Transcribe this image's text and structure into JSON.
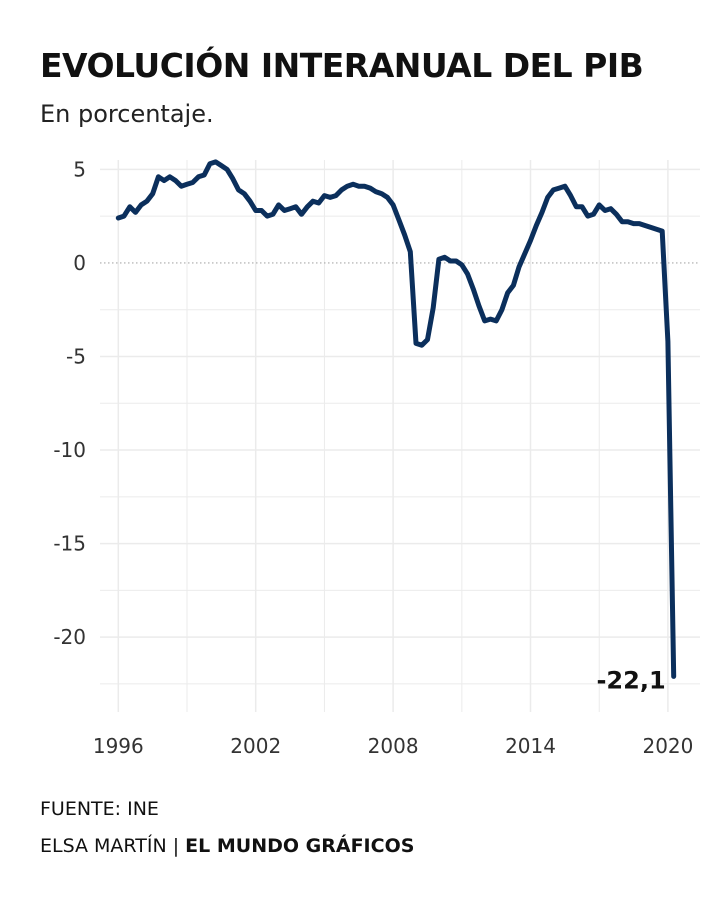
{
  "header": {
    "title": "EVOLUCIÓN INTERANUAL DEL PIB",
    "subtitle": "En porcentaje."
  },
  "footer": {
    "source": "FUENTE: INE",
    "author": "ELSA MARTÍN",
    "separator": " | ",
    "brand": "EL MUNDO GRÁFICOS"
  },
  "colors": {
    "line": "#0b2f5c",
    "grid": "#ebebeb",
    "zero_line": "#aaaaaa"
  },
  "chart_data": {
    "type": "line",
    "title": "EVOLUCIÓN INTERANUAL DEL PIB",
    "subtitle": "En porcentaje.",
    "xlabel": "",
    "ylabel": "",
    "xlim": [
      1995.2,
      2021.4
    ],
    "ylim": [
      -24,
      5.5
    ],
    "x_ticks": [
      1996,
      2002,
      2008,
      2014,
      2020
    ],
    "x_tick_labels": [
      "1996",
      "2002",
      "2008",
      "2014",
      "2020"
    ],
    "y_ticks": [
      5,
      0,
      -5,
      -10,
      -15,
      -20
    ],
    "y_tick_labels": [
      "5",
      "0",
      "-5",
      "-10",
      "-15",
      "-20"
    ],
    "grid": true,
    "zero_reference_line": "dotted",
    "annotation": {
      "text": "-22,1",
      "x": 2020.25,
      "y": -22.1
    },
    "series": [
      {
        "x": [
          1996.0,
          1996.25,
          1996.5,
          1996.75,
          1997.0,
          1997.25,
          1997.5,
          1997.75,
          1998.0,
          1998.25,
          1998.5,
          1998.75,
          1999.0,
          1999.25,
          1999.5,
          1999.75,
          2000.0,
          2000.25,
          2000.5,
          2000.75,
          2001.0,
          2001.25,
          2001.5,
          2001.75,
          2002.0,
          2002.25,
          2002.5,
          2002.75,
          2003.0,
          2003.25,
          2003.5,
          2003.75,
          2004.0,
          2004.25,
          2004.5,
          2004.75,
          2005.0,
          2005.25,
          2005.5,
          2005.75,
          2006.0,
          2006.25,
          2006.5,
          2006.75,
          2007.0,
          2007.25,
          2007.5,
          2007.75,
          2008.0,
          2008.25,
          2008.5,
          2008.75,
          2009.0,
          2009.25,
          2009.5,
          2009.75,
          2010.0,
          2010.25,
          2010.5,
          2010.75,
          2011.0,
          2011.25,
          2011.5,
          2011.75,
          2012.0,
          2012.25,
          2012.5,
          2012.75,
          2013.0,
          2013.25,
          2013.5,
          2013.75,
          2014.0,
          2014.25,
          2014.5,
          2014.75,
          2015.0,
          2015.25,
          2015.5,
          2015.75,
          2016.0,
          2016.25,
          2016.5,
          2016.75,
          2017.0,
          2017.25,
          2017.5,
          2017.75,
          2018.0,
          2018.25,
          2018.5,
          2018.75,
          2019.0,
          2019.25,
          2019.5,
          2019.75,
          2020.0,
          2020.25
        ],
        "values": [
          2.4,
          2.5,
          3.0,
          2.7,
          3.1,
          3.3,
          3.7,
          4.6,
          4.4,
          4.6,
          4.4,
          4.1,
          4.2,
          4.3,
          4.6,
          4.7,
          5.3,
          5.4,
          5.2,
          5.0,
          4.5,
          3.9,
          3.7,
          3.3,
          2.8,
          2.8,
          2.5,
          2.6,
          3.1,
          2.8,
          2.9,
          3.0,
          2.6,
          3.0,
          3.3,
          3.2,
          3.6,
          3.5,
          3.6,
          3.9,
          4.1,
          4.2,
          4.1,
          4.1,
          4.0,
          3.8,
          3.7,
          3.5,
          3.1,
          2.3,
          1.5,
          0.6,
          -4.3,
          -4.4,
          -4.1,
          -2.4,
          0.2,
          0.3,
          0.1,
          0.1,
          -0.1,
          -0.6,
          -1.4,
          -2.3,
          -3.1,
          -3.0,
          -3.1,
          -2.5,
          -1.6,
          -1.2,
          -0.2,
          0.5,
          1.2,
          2.0,
          2.7,
          3.5,
          3.9,
          4.0,
          4.1,
          3.6,
          3.0,
          3.0,
          2.5,
          2.6,
          3.1,
          2.8,
          2.9,
          2.6,
          2.2,
          2.2,
          2.1,
          2.1,
          2.0,
          1.9,
          1.8,
          1.7,
          -4.2,
          -22.1
        ]
      }
    ]
  }
}
